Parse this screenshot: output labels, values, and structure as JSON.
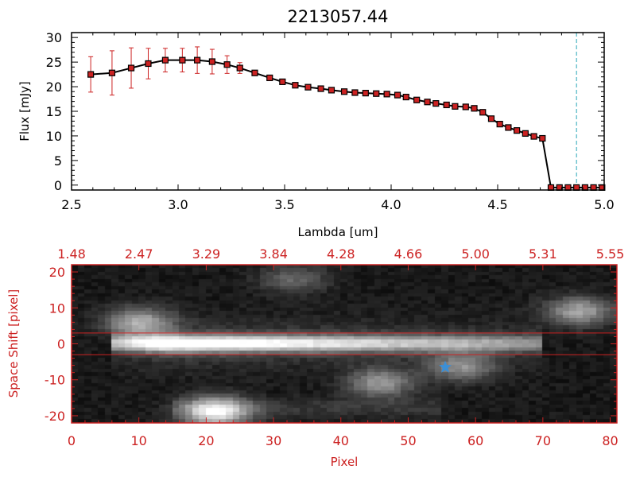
{
  "chart_data": [
    {
      "type": "line",
      "title": "2213057.44",
      "xlabel": "Lambda [um]",
      "ylabel": "Flux [mJy]",
      "xlim": [
        2.5,
        5.0
      ],
      "ylim": [
        -1,
        31
      ],
      "xticks": [
        "2.5",
        "3.0",
        "3.5",
        "4.0",
        "4.5",
        "5.0"
      ],
      "yticks": [
        "0",
        "5",
        "10",
        "15",
        "20",
        "25",
        "30"
      ],
      "vline_x": 4.87,
      "series": [
        {
          "name": "flux",
          "x": [
            2.59,
            2.69,
            2.78,
            2.86,
            2.94,
            3.02,
            3.09,
            3.16,
            3.23,
            3.29,
            3.36,
            3.43,
            3.49,
            3.55,
            3.61,
            3.67,
            3.72,
            3.78,
            3.83,
            3.88,
            3.93,
            3.98,
            4.03,
            4.07,
            4.12,
            4.17,
            4.21,
            4.26,
            4.3,
            4.35,
            4.39,
            4.43,
            4.47,
            4.51,
            4.55,
            4.59,
            4.63,
            4.67,
            4.71,
            4.75,
            4.79,
            4.83,
            4.87,
            4.91,
            4.95,
            4.99
          ],
          "y": [
            22.5,
            22.8,
            23.8,
            24.7,
            25.4,
            25.4,
            25.4,
            25.1,
            24.5,
            23.8,
            22.8,
            21.8,
            21.0,
            20.3,
            19.9,
            19.6,
            19.3,
            19.0,
            18.8,
            18.7,
            18.6,
            18.5,
            18.3,
            17.9,
            17.3,
            16.9,
            16.6,
            16.3,
            16.0,
            15.9,
            15.6,
            14.8,
            13.5,
            12.4,
            11.7,
            11.1,
            10.5,
            9.9,
            9.5,
            -0.5,
            -0.5,
            -0.5,
            -0.5,
            -0.5,
            -0.5,
            -0.5
          ],
          "yerr": [
            3.6,
            4.5,
            4.1,
            3.1,
            2.4,
            2.4,
            2.7,
            2.5,
            1.8,
            1.1,
            0.5,
            0.3,
            0.2,
            0.2,
            0.2,
            0.2,
            0.2,
            0.2,
            0.2,
            0.2,
            0.2,
            0.2,
            0.2,
            0.2,
            0.2,
            0.2,
            0.2,
            0.2,
            0.2,
            0.2,
            0.2,
            0.2,
            0.2,
            0.2,
            0.2,
            0.2,
            0.2,
            0.2,
            0.2,
            0.1,
            0.1,
            0.1,
            0.1,
            0.1,
            0.1,
            0.1
          ]
        }
      ]
    },
    {
      "type": "heatmap",
      "xlabel": "Pixel",
      "ylabel": "Space Shift [pixel]",
      "xlim": [
        0,
        81
      ],
      "ylim": [
        -22,
        22
      ],
      "xticks": [
        "0",
        "10",
        "20",
        "30",
        "40",
        "50",
        "60",
        "70",
        "80"
      ],
      "yticks": [
        "-20",
        "-10",
        "0",
        "10",
        "20"
      ],
      "top_axis_ticks": [
        "1.48",
        "2.47",
        "3.29",
        "3.84",
        "4.28",
        "4.66",
        "5.00",
        "5.31",
        "5.55"
      ],
      "extraction_lines_y": [
        3,
        -3
      ],
      "marker": {
        "symbol": "star",
        "x": 55.5,
        "y": -6.5
      },
      "sources": [
        {
          "x": 10.0,
          "y": 6.0,
          "amp": 0.55
        },
        {
          "x": 21.5,
          "y": -19.0,
          "amp": 0.85
        },
        {
          "x": 75.5,
          "y": 9.0,
          "amp": 0.55
        },
        {
          "x": 46.0,
          "y": -11.0,
          "amp": 0.5
        },
        {
          "x": 58.0,
          "y": -6.5,
          "amp": 0.45
        },
        {
          "x": 33.0,
          "y": 18.0,
          "amp": 0.3
        }
      ],
      "spectrum_trace": {
        "y": 0,
        "x_start": 6,
        "x_end": 70
      }
    }
  ]
}
